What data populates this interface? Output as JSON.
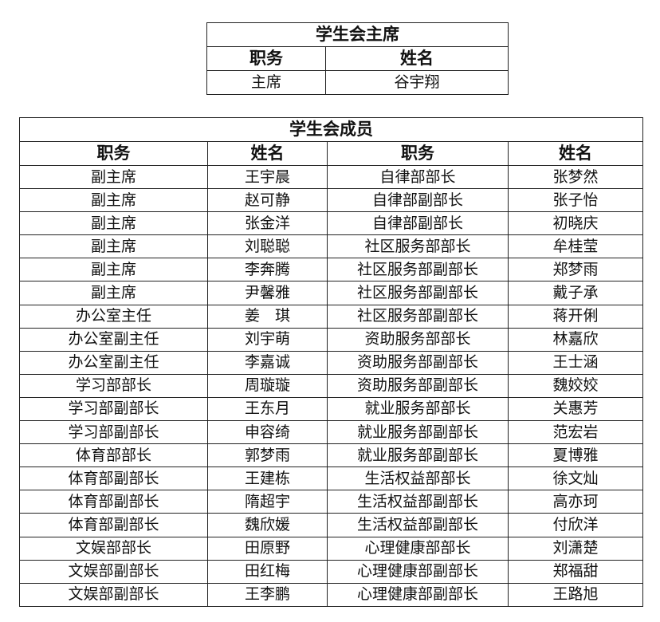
{
  "president_table": {
    "title": "学生会主席",
    "headers": [
      "职务",
      "姓名"
    ],
    "row": [
      "主席",
      "谷宇翔"
    ]
  },
  "members_table": {
    "title": "学生会成员",
    "headers": [
      "职务",
      "姓名",
      "职务",
      "姓名"
    ],
    "rows": [
      [
        "副主席",
        "王宇晨",
        "自律部部长",
        "张梦然"
      ],
      [
        "副主席",
        "赵可静",
        "自律部副部长",
        "张子怡"
      ],
      [
        "副主席",
        "张金洋",
        "自律部副部长",
        "初晓庆"
      ],
      [
        "副主席",
        "刘聪聪",
        "社区服务部部长",
        "牟桂莹"
      ],
      [
        "副主席",
        "李奔腾",
        "社区服务部副部长",
        "郑梦雨"
      ],
      [
        "副主席",
        "尹馨雅",
        "社区服务部副部长",
        "戴子承"
      ],
      [
        "办公室主任",
        "姜　琪",
        "社区服务部副部长",
        "蒋开俐"
      ],
      [
        "办公室副主任",
        "刘宇萌",
        "资助服务部部长",
        "林嘉欣"
      ],
      [
        "办公室副主任",
        "李嘉诚",
        "资助服务部副部长",
        "王士涵"
      ],
      [
        "学习部部长",
        "周璇璇",
        "资助服务部副部长",
        "魏姣姣"
      ],
      [
        "学习部副部长",
        "王东月",
        "就业服务部部长",
        "关惠芳"
      ],
      [
        "学习部副部长",
        "申容绮",
        "就业服务部副部长",
        "范宏岩"
      ],
      [
        "体育部部长",
        "郭梦雨",
        "就业服务部副部长",
        "夏博雅"
      ],
      [
        "体育部副部长",
        "王建栋",
        "生活权益部部长",
        "徐文灿"
      ],
      [
        "体育部副部长",
        "隋超宇",
        "生活权益部副部长",
        "高亦珂"
      ],
      [
        "体育部副部长",
        "魏欣媛",
        "生活权益部副部长",
        "付欣洋"
      ],
      [
        "文娱部部长",
        "田原野",
        "心理健康部部长",
        "刘潇楚"
      ],
      [
        "文娱部副部长",
        "田红梅",
        "心理健康部副部长",
        "郑福甜"
      ],
      [
        "文娱部副部长",
        "王李鹏",
        "心理健康部副部长",
        "王路旭"
      ]
    ]
  }
}
